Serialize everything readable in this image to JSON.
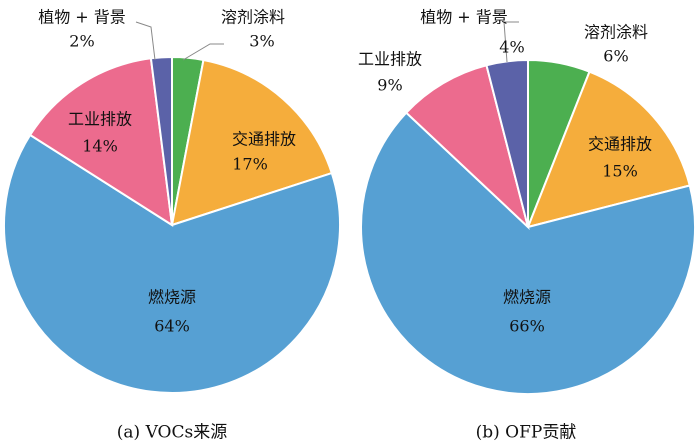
{
  "chart_data": [
    {
      "type": "pie",
      "caption": "(a) VOCs来源",
      "slices": [
        {
          "label": "溶剂涂料",
          "percent_label": "3%",
          "value": 3,
          "color": "#4caf50"
        },
        {
          "label": "交通排放",
          "percent_label": "17%",
          "value": 17,
          "color": "#f5ad3c"
        },
        {
          "label": "燃烧源",
          "percent_label": "64%",
          "value": 64,
          "color": "#56a0d3"
        },
        {
          "label": "工业排放",
          "percent_label": "14%",
          "value": 14,
          "color": "#ec6b8e"
        },
        {
          "label": "植物 + 背景",
          "percent_label": "2%",
          "value": 2,
          "color": "#5b62a8"
        }
      ]
    },
    {
      "type": "pie",
      "caption": "(b) OFP贡献",
      "slices": [
        {
          "label": "溶剂涂料",
          "percent_label": "6%",
          "value": 6,
          "color": "#4caf50"
        },
        {
          "label": "交通排放",
          "percent_label": "15%",
          "value": 15,
          "color": "#f5ad3c"
        },
        {
          "label": "燃烧源",
          "percent_label": "66%",
          "value": 66,
          "color": "#56a0d3"
        },
        {
          "label": "工业排放",
          "percent_label": "9%",
          "value": 9,
          "color": "#ec6b8e"
        },
        {
          "label": "植物 + 背景",
          "percent_label": "4%",
          "value": 4,
          "color": "#5b62a8"
        }
      ]
    }
  ]
}
